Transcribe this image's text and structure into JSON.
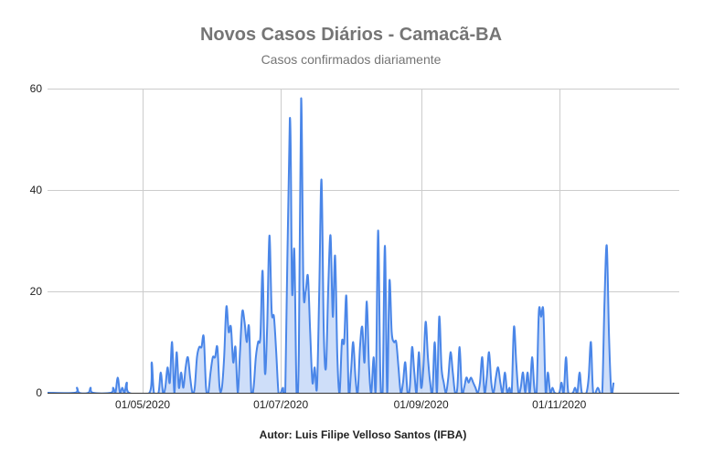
{
  "chart_data": {
    "type": "area",
    "title": "Novos Casos Diários - Camacã-BA",
    "subtitle": "Casos confirmados diariamente",
    "xlabel": "Autor: Luis Filipe Velloso Santos (IFBA)",
    "ylabel": "",
    "x_start": "2020-03-20",
    "x_end": "2020-12-24",
    "ylim": [
      0,
      60
    ],
    "yticks": [
      "0",
      "20",
      "40",
      "60"
    ],
    "xticks": [
      {
        "date": "2020-05-01",
        "label": "01/05/2020"
      },
      {
        "date": "2020-07-01",
        "label": "01/07/2020"
      },
      {
        "date": "2020-09-01",
        "label": "01/09/2020"
      },
      {
        "date": "2020-11-01",
        "label": "01/11/2020"
      }
    ],
    "grid": true,
    "legend": "none",
    "colors": {
      "line": "#4a86e8",
      "fill": "#c9daf8"
    },
    "series": [
      {
        "points": [
          [
            "2020-03-20",
            0
          ],
          [
            "2020-04-01",
            0
          ],
          [
            "2020-04-02",
            1
          ],
          [
            "2020-04-03",
            0
          ],
          [
            "2020-04-07",
            0
          ],
          [
            "2020-04-08",
            1
          ],
          [
            "2020-04-09",
            0
          ],
          [
            "2020-04-17",
            0
          ],
          [
            "2020-04-18",
            1
          ],
          [
            "2020-04-19",
            0
          ],
          [
            "2020-04-20",
            3
          ],
          [
            "2020-04-21",
            0
          ],
          [
            "2020-04-22",
            1
          ],
          [
            "2020-04-23",
            0
          ],
          [
            "2020-04-24",
            2
          ],
          [
            "2020-04-25",
            0
          ],
          [
            "2020-05-04",
            0
          ],
          [
            "2020-05-05",
            6
          ],
          [
            "2020-05-06",
            0
          ],
          [
            "2020-05-08",
            0
          ],
          [
            "2020-05-09",
            4
          ],
          [
            "2020-05-10",
            0
          ],
          [
            "2020-05-11",
            1
          ],
          [
            "2020-05-12",
            5
          ],
          [
            "2020-05-13",
            2
          ],
          [
            "2020-05-14",
            10
          ],
          [
            "2020-05-15",
            0
          ],
          [
            "2020-05-16",
            8
          ],
          [
            "2020-05-17",
            1
          ],
          [
            "2020-05-18",
            4
          ],
          [
            "2020-05-19",
            1
          ],
          [
            "2020-05-20",
            5
          ],
          [
            "2020-05-21",
            7
          ],
          [
            "2020-05-22",
            3
          ],
          [
            "2020-05-23",
            0
          ],
          [
            "2020-05-24",
            1
          ],
          [
            "2020-05-25",
            7
          ],
          [
            "2020-05-26",
            9
          ],
          [
            "2020-05-27",
            9
          ],
          [
            "2020-05-28",
            11
          ],
          [
            "2020-05-29",
            1
          ],
          [
            "2020-05-30",
            0
          ],
          [
            "2020-05-31",
            4
          ],
          [
            "2020-06-01",
            7
          ],
          [
            "2020-06-02",
            7
          ],
          [
            "2020-06-03",
            9
          ],
          [
            "2020-06-04",
            1
          ],
          [
            "2020-06-05",
            1
          ],
          [
            "2020-06-06",
            7
          ],
          [
            "2020-06-07",
            17
          ],
          [
            "2020-06-08",
            12
          ],
          [
            "2020-06-09",
            13
          ],
          [
            "2020-06-10",
            6
          ],
          [
            "2020-06-11",
            9
          ],
          [
            "2020-06-12",
            0
          ],
          [
            "2020-06-13",
            8
          ],
          [
            "2020-06-14",
            16
          ],
          [
            "2020-06-15",
            14
          ],
          [
            "2020-06-16",
            10
          ],
          [
            "2020-06-17",
            13
          ],
          [
            "2020-06-18",
            0
          ],
          [
            "2020-06-19",
            1
          ],
          [
            "2020-06-20",
            7
          ],
          [
            "2020-06-21",
            10
          ],
          [
            "2020-06-22",
            11
          ],
          [
            "2020-06-23",
            24
          ],
          [
            "2020-06-24",
            4
          ],
          [
            "2020-06-25",
            13
          ],
          [
            "2020-06-26",
            31
          ],
          [
            "2020-06-27",
            16
          ],
          [
            "2020-06-28",
            15
          ],
          [
            "2020-06-29",
            8
          ],
          [
            "2020-06-30",
            0
          ],
          [
            "2020-07-01",
            0
          ],
          [
            "2020-07-02",
            1
          ],
          [
            "2020-07-03",
            0
          ],
          [
            "2020-07-05",
            54
          ],
          [
            "2020-07-06",
            20
          ],
          [
            "2020-07-07",
            28
          ],
          [
            "2020-07-08",
            0
          ],
          [
            "2020-07-09",
            8
          ],
          [
            "2020-07-10",
            58
          ],
          [
            "2020-07-11",
            21
          ],
          [
            "2020-07-12",
            20
          ],
          [
            "2020-07-13",
            23
          ],
          [
            "2020-07-14",
            12
          ],
          [
            "2020-07-15",
            2
          ],
          [
            "2020-07-16",
            5
          ],
          [
            "2020-07-17",
            1
          ],
          [
            "2020-07-18",
            20
          ],
          [
            "2020-07-19",
            42
          ],
          [
            "2020-07-20",
            12
          ],
          [
            "2020-07-21",
            5
          ],
          [
            "2020-07-22",
            21
          ],
          [
            "2020-07-23",
            31
          ],
          [
            "2020-07-24",
            15
          ],
          [
            "2020-07-25",
            27
          ],
          [
            "2020-07-26",
            7
          ],
          [
            "2020-07-27",
            0
          ],
          [
            "2020-07-28",
            10
          ],
          [
            "2020-07-29",
            10
          ],
          [
            "2020-07-30",
            19
          ],
          [
            "2020-07-31",
            0
          ],
          [
            "2020-08-01",
            4
          ],
          [
            "2020-08-02",
            10
          ],
          [
            "2020-08-03",
            3
          ],
          [
            "2020-08-04",
            0
          ],
          [
            "2020-08-05",
            9
          ],
          [
            "2020-08-06",
            13
          ],
          [
            "2020-08-07",
            6
          ],
          [
            "2020-08-08",
            18
          ],
          [
            "2020-08-09",
            5
          ],
          [
            "2020-08-10",
            0
          ],
          [
            "2020-08-11",
            7
          ],
          [
            "2020-08-12",
            1
          ],
          [
            "2020-08-13",
            32
          ],
          [
            "2020-08-14",
            3
          ],
          [
            "2020-08-15",
            0
          ],
          [
            "2020-08-16",
            29
          ],
          [
            "2020-08-17",
            0
          ],
          [
            "2020-08-18",
            22
          ],
          [
            "2020-08-19",
            12
          ],
          [
            "2020-08-20",
            10
          ],
          [
            "2020-08-21",
            10
          ],
          [
            "2020-08-22",
            5
          ],
          [
            "2020-08-23",
            0
          ],
          [
            "2020-08-24",
            2
          ],
          [
            "2020-08-25",
            6
          ],
          [
            "2020-08-26",
            0
          ],
          [
            "2020-08-27",
            1
          ],
          [
            "2020-08-28",
            9
          ],
          [
            "2020-08-29",
            4
          ],
          [
            "2020-08-30",
            0
          ],
          [
            "2020-08-31",
            8
          ],
          [
            "2020-09-01",
            1
          ],
          [
            "2020-09-02",
            5
          ],
          [
            "2020-09-03",
            14
          ],
          [
            "2020-09-04",
            7
          ],
          [
            "2020-09-05",
            2
          ],
          [
            "2020-09-06",
            0
          ],
          [
            "2020-09-07",
            10
          ],
          [
            "2020-09-08",
            0
          ],
          [
            "2020-09-09",
            15
          ],
          [
            "2020-09-10",
            5
          ],
          [
            "2020-09-11",
            2
          ],
          [
            "2020-09-12",
            0
          ],
          [
            "2020-09-13",
            3
          ],
          [
            "2020-09-14",
            8
          ],
          [
            "2020-09-15",
            4
          ],
          [
            "2020-09-16",
            0
          ],
          [
            "2020-09-17",
            1
          ],
          [
            "2020-09-18",
            9
          ],
          [
            "2020-09-19",
            0
          ],
          [
            "2020-09-20",
            1
          ],
          [
            "2020-09-21",
            3
          ],
          [
            "2020-09-22",
            2
          ],
          [
            "2020-09-23",
            3
          ],
          [
            "2020-09-24",
            2
          ],
          [
            "2020-09-25",
            1
          ],
          [
            "2020-09-26",
            0
          ],
          [
            "2020-09-27",
            2
          ],
          [
            "2020-09-28",
            7
          ],
          [
            "2020-09-29",
            0
          ],
          [
            "2020-09-30",
            3
          ],
          [
            "2020-10-01",
            8
          ],
          [
            "2020-10-02",
            2
          ],
          [
            "2020-10-03",
            0
          ],
          [
            "2020-10-04",
            3
          ],
          [
            "2020-10-05",
            5
          ],
          [
            "2020-10-06",
            2
          ],
          [
            "2020-10-07",
            0
          ],
          [
            "2020-10-08",
            4
          ],
          [
            "2020-10-09",
            0
          ],
          [
            "2020-10-10",
            1
          ],
          [
            "2020-10-11",
            0
          ],
          [
            "2020-10-12",
            13
          ],
          [
            "2020-10-13",
            6
          ],
          [
            "2020-10-14",
            0
          ],
          [
            "2020-10-15",
            1
          ],
          [
            "2020-10-16",
            4
          ],
          [
            "2020-10-17",
            0
          ],
          [
            "2020-10-18",
            4
          ],
          [
            "2020-10-19",
            0
          ],
          [
            "2020-10-20",
            7
          ],
          [
            "2020-10-21",
            1
          ],
          [
            "2020-10-22",
            0
          ],
          [
            "2020-10-23",
            16
          ],
          [
            "2020-10-24",
            15
          ],
          [
            "2020-10-25",
            16
          ],
          [
            "2020-10-26",
            0
          ],
          [
            "2020-10-27",
            4
          ],
          [
            "2020-10-28",
            0
          ],
          [
            "2020-10-29",
            1
          ],
          [
            "2020-10-30",
            0
          ],
          [
            "2020-11-01",
            0
          ],
          [
            "2020-11-02",
            2
          ],
          [
            "2020-11-03",
            0
          ],
          [
            "2020-11-04",
            7
          ],
          [
            "2020-11-05",
            0
          ],
          [
            "2020-11-07",
            0
          ],
          [
            "2020-11-08",
            1
          ],
          [
            "2020-11-09",
            0
          ],
          [
            "2020-11-10",
            4
          ],
          [
            "2020-11-11",
            0
          ],
          [
            "2020-11-13",
            0
          ],
          [
            "2020-11-14",
            3
          ],
          [
            "2020-11-15",
            10
          ],
          [
            "2020-11-16",
            0
          ],
          [
            "2020-11-18",
            1
          ],
          [
            "2020-11-19",
            0
          ],
          [
            "2020-11-20",
            0
          ],
          [
            "2020-11-21",
            18
          ],
          [
            "2020-11-22",
            29
          ],
          [
            "2020-11-23",
            11
          ],
          [
            "2020-11-24",
            0
          ],
          [
            "2020-11-25",
            2
          ]
        ]
      }
    ]
  }
}
